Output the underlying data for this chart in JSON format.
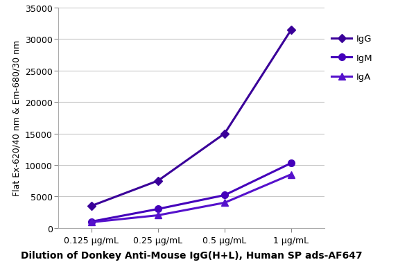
{
  "x_labels": [
    "0.125 μg/mL",
    "0.25 μg/mL",
    "0.5 μg/mL",
    "1 μg/mL"
  ],
  "x_values": [
    0,
    1,
    2,
    3
  ],
  "series": [
    {
      "name": "IgG",
      "values": [
        3500,
        7500,
        15000,
        31500
      ],
      "color": "#3a0099",
      "marker": "D",
      "markersize": 6
    },
    {
      "name": "IgM",
      "values": [
        1000,
        3000,
        5200,
        10300
      ],
      "color": "#4400bb",
      "marker": "o",
      "markersize": 7
    },
    {
      "name": "IgA",
      "values": [
        900,
        2000,
        4000,
        8500
      ],
      "color": "#5511cc",
      "marker": "^",
      "markersize": 7
    }
  ],
  "ylabel": "Flat Ex-620/40 nm & Em-680/30 nm",
  "xlabel": "Dilution of Donkey Anti-Mouse IgG(H+L), Human SP ads-AF647",
  "ylim": [
    0,
    35000
  ],
  "yticks": [
    0,
    5000,
    10000,
    15000,
    20000,
    25000,
    30000,
    35000
  ],
  "ytick_labels": [
    "0",
    "5000",
    "10000",
    "15000",
    "20000",
    "25000",
    "30000",
    "35000"
  ],
  "background_color": "#ffffff",
  "grid_color": "#c8c8c8",
  "legend_fontsize": 9.5,
  "axis_ylabel_fontsize": 9,
  "axis_xlabel_fontsize": 10,
  "tick_fontsize": 9,
  "line_width": 2.2,
  "figure_width": 6.0,
  "figure_height": 4.02,
  "dpi": 100
}
